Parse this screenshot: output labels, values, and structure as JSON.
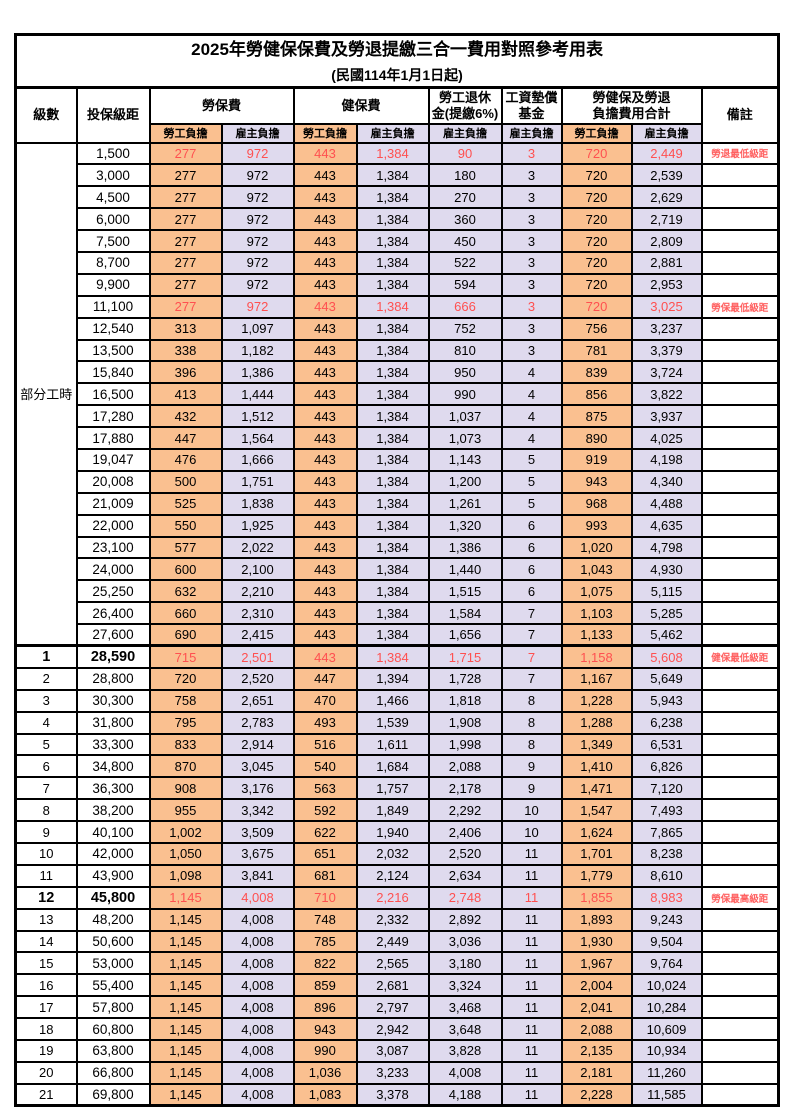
{
  "page": {
    "title": "2025年勞健保保費及勞退提繳三合一費用對照參考用表",
    "subtitle": "(民國114年1月1日起)"
  },
  "colors": {
    "employee_bg": "#FAC090",
    "employer_bg": "#DFDAEE",
    "highlight_text": "#FF5050",
    "remark_text": "#FF6060",
    "border": "#000000"
  },
  "table": {
    "headers": {
      "level": "級數",
      "bracket": "投保級距",
      "labor_fee": "勞保費",
      "health_fee": "健保費",
      "pension_line1": "勞工退休",
      "pension_line2": "金(提繳6%)",
      "wage_fund_line1": "工資墊償",
      "wage_fund_line2": "基金",
      "total_line1": "勞健保及勞退",
      "total_line2": "負擔費用合計",
      "remark": "備註",
      "employee": "勞工負擔",
      "employer": "雇主負擔"
    },
    "part_time_label": "部分工時",
    "rows": [
      {
        "level": "",
        "bracket": "1,500",
        "fees": [
          "277",
          "972",
          "443",
          "1,384",
          "90",
          "3",
          "720",
          "2,449"
        ],
        "remark": "勞退最低級距",
        "red": true
      },
      {
        "level": "",
        "bracket": "3,000",
        "fees": [
          "277",
          "972",
          "443",
          "1,384",
          "180",
          "3",
          "720",
          "2,539"
        ],
        "remark": ""
      },
      {
        "level": "",
        "bracket": "4,500",
        "fees": [
          "277",
          "972",
          "443",
          "1,384",
          "270",
          "3",
          "720",
          "2,629"
        ],
        "remark": ""
      },
      {
        "level": "",
        "bracket": "6,000",
        "fees": [
          "277",
          "972",
          "443",
          "1,384",
          "360",
          "3",
          "720",
          "2,719"
        ],
        "remark": ""
      },
      {
        "level": "",
        "bracket": "7,500",
        "fees": [
          "277",
          "972",
          "443",
          "1,384",
          "450",
          "3",
          "720",
          "2,809"
        ],
        "remark": ""
      },
      {
        "level": "",
        "bracket": "8,700",
        "fees": [
          "277",
          "972",
          "443",
          "1,384",
          "522",
          "3",
          "720",
          "2,881"
        ],
        "remark": ""
      },
      {
        "level": "",
        "bracket": "9,900",
        "fees": [
          "277",
          "972",
          "443",
          "1,384",
          "594",
          "3",
          "720",
          "2,953"
        ],
        "remark": ""
      },
      {
        "level": "",
        "bracket": "11,100",
        "fees": [
          "277",
          "972",
          "443",
          "1,384",
          "666",
          "3",
          "720",
          "3,025"
        ],
        "remark": "勞保最低級距",
        "red": true
      },
      {
        "level": "",
        "bracket": "12,540",
        "fees": [
          "313",
          "1,097",
          "443",
          "1,384",
          "752",
          "3",
          "756",
          "3,237"
        ],
        "remark": ""
      },
      {
        "level": "",
        "bracket": "13,500",
        "fees": [
          "338",
          "1,182",
          "443",
          "1,384",
          "810",
          "3",
          "781",
          "3,379"
        ],
        "remark": ""
      },
      {
        "level": "",
        "bracket": "15,840",
        "fees": [
          "396",
          "1,386",
          "443",
          "1,384",
          "950",
          "4",
          "839",
          "3,724"
        ],
        "remark": ""
      },
      {
        "level": "",
        "bracket": "16,500",
        "fees": [
          "413",
          "1,444",
          "443",
          "1,384",
          "990",
          "4",
          "856",
          "3,822"
        ],
        "remark": ""
      },
      {
        "level": "",
        "bracket": "17,280",
        "fees": [
          "432",
          "1,512",
          "443",
          "1,384",
          "1,037",
          "4",
          "875",
          "3,937"
        ],
        "remark": ""
      },
      {
        "level": "",
        "bracket": "17,880",
        "fees": [
          "447",
          "1,564",
          "443",
          "1,384",
          "1,073",
          "4",
          "890",
          "4,025"
        ],
        "remark": ""
      },
      {
        "level": "",
        "bracket": "19,047",
        "fees": [
          "476",
          "1,666",
          "443",
          "1,384",
          "1,143",
          "5",
          "919",
          "4,198"
        ],
        "remark": ""
      },
      {
        "level": "",
        "bracket": "20,008",
        "fees": [
          "500",
          "1,751",
          "443",
          "1,384",
          "1,200",
          "5",
          "943",
          "4,340"
        ],
        "remark": ""
      },
      {
        "level": "",
        "bracket": "21,009",
        "fees": [
          "525",
          "1,838",
          "443",
          "1,384",
          "1,261",
          "5",
          "968",
          "4,488"
        ],
        "remark": ""
      },
      {
        "level": "",
        "bracket": "22,000",
        "fees": [
          "550",
          "1,925",
          "443",
          "1,384",
          "1,320",
          "6",
          "993",
          "4,635"
        ],
        "remark": ""
      },
      {
        "level": "",
        "bracket": "23,100",
        "fees": [
          "577",
          "2,022",
          "443",
          "1,384",
          "1,386",
          "6",
          "1,020",
          "4,798"
        ],
        "remark": ""
      },
      {
        "level": "",
        "bracket": "24,000",
        "fees": [
          "600",
          "2,100",
          "443",
          "1,384",
          "1,440",
          "6",
          "1,043",
          "4,930"
        ],
        "remark": ""
      },
      {
        "level": "",
        "bracket": "25,250",
        "fees": [
          "632",
          "2,210",
          "443",
          "1,384",
          "1,515",
          "6",
          "1,075",
          "5,115"
        ],
        "remark": ""
      },
      {
        "level": "",
        "bracket": "26,400",
        "fees": [
          "660",
          "2,310",
          "443",
          "1,384",
          "1,584",
          "7",
          "1,103",
          "5,285"
        ],
        "remark": ""
      },
      {
        "level": "",
        "bracket": "27,600",
        "fees": [
          "690",
          "2,415",
          "443",
          "1,384",
          "1,656",
          "7",
          "1,133",
          "5,462"
        ],
        "remark": ""
      },
      {
        "level": "1",
        "bracket": "28,590",
        "fees": [
          "715",
          "2,501",
          "443",
          "1,384",
          "1,715",
          "7",
          "1,158",
          "5,608"
        ],
        "remark": "健保最低級距",
        "red": true,
        "bold": true,
        "section_break": true
      },
      {
        "level": "2",
        "bracket": "28,800",
        "fees": [
          "720",
          "2,520",
          "447",
          "1,394",
          "1,728",
          "7",
          "1,167",
          "5,649"
        ],
        "remark": ""
      },
      {
        "level": "3",
        "bracket": "30,300",
        "fees": [
          "758",
          "2,651",
          "470",
          "1,466",
          "1,818",
          "8",
          "1,228",
          "5,943"
        ],
        "remark": ""
      },
      {
        "level": "4",
        "bracket": "31,800",
        "fees": [
          "795",
          "2,783",
          "493",
          "1,539",
          "1,908",
          "8",
          "1,288",
          "6,238"
        ],
        "remark": ""
      },
      {
        "level": "5",
        "bracket": "33,300",
        "fees": [
          "833",
          "2,914",
          "516",
          "1,611",
          "1,998",
          "8",
          "1,349",
          "6,531"
        ],
        "remark": ""
      },
      {
        "level": "6",
        "bracket": "34,800",
        "fees": [
          "870",
          "3,045",
          "540",
          "1,684",
          "2,088",
          "9",
          "1,410",
          "6,826"
        ],
        "remark": ""
      },
      {
        "level": "7",
        "bracket": "36,300",
        "fees": [
          "908",
          "3,176",
          "563",
          "1,757",
          "2,178",
          "9",
          "1,471",
          "7,120"
        ],
        "remark": ""
      },
      {
        "level": "8",
        "bracket": "38,200",
        "fees": [
          "955",
          "3,342",
          "592",
          "1,849",
          "2,292",
          "10",
          "1,547",
          "7,493"
        ],
        "remark": ""
      },
      {
        "level": "9",
        "bracket": "40,100",
        "fees": [
          "1,002",
          "3,509",
          "622",
          "1,940",
          "2,406",
          "10",
          "1,624",
          "7,865"
        ],
        "remark": ""
      },
      {
        "level": "10",
        "bracket": "42,000",
        "fees": [
          "1,050",
          "3,675",
          "651",
          "2,032",
          "2,520",
          "11",
          "1,701",
          "8,238"
        ],
        "remark": ""
      },
      {
        "level": "11",
        "bracket": "43,900",
        "fees": [
          "1,098",
          "3,841",
          "681",
          "2,124",
          "2,634",
          "11",
          "1,779",
          "8,610"
        ],
        "remark": ""
      },
      {
        "level": "12",
        "bracket": "45,800",
        "fees": [
          "1,145",
          "4,008",
          "710",
          "2,216",
          "2,748",
          "11",
          "1,855",
          "8,983"
        ],
        "remark": "勞保最高級距",
        "red": true,
        "bold": true
      },
      {
        "level": "13",
        "bracket": "48,200",
        "fees": [
          "1,145",
          "4,008",
          "748",
          "2,332",
          "2,892",
          "11",
          "1,893",
          "9,243"
        ],
        "remark": ""
      },
      {
        "level": "14",
        "bracket": "50,600",
        "fees": [
          "1,145",
          "4,008",
          "785",
          "2,449",
          "3,036",
          "11",
          "1,930",
          "9,504"
        ],
        "remark": ""
      },
      {
        "level": "15",
        "bracket": "53,000",
        "fees": [
          "1,145",
          "4,008",
          "822",
          "2,565",
          "3,180",
          "11",
          "1,967",
          "9,764"
        ],
        "remark": ""
      },
      {
        "level": "16",
        "bracket": "55,400",
        "fees": [
          "1,145",
          "4,008",
          "859",
          "2,681",
          "3,324",
          "11",
          "2,004",
          "10,024"
        ],
        "remark": ""
      },
      {
        "level": "17",
        "bracket": "57,800",
        "fees": [
          "1,145",
          "4,008",
          "896",
          "2,797",
          "3,468",
          "11",
          "2,041",
          "10,284"
        ],
        "remark": ""
      },
      {
        "level": "18",
        "bracket": "60,800",
        "fees": [
          "1,145",
          "4,008",
          "943",
          "2,942",
          "3,648",
          "11",
          "2,088",
          "10,609"
        ],
        "remark": ""
      },
      {
        "level": "19",
        "bracket": "63,800",
        "fees": [
          "1,145",
          "4,008",
          "990",
          "3,087",
          "3,828",
          "11",
          "2,135",
          "10,934"
        ],
        "remark": ""
      },
      {
        "level": "20",
        "bracket": "66,800",
        "fees": [
          "1,145",
          "4,008",
          "1,036",
          "3,233",
          "4,008",
          "11",
          "2,181",
          "11,260"
        ],
        "remark": ""
      },
      {
        "level": "21",
        "bracket": "69,800",
        "fees": [
          "1,145",
          "4,008",
          "1,083",
          "3,378",
          "4,188",
          "11",
          "2,228",
          "11,585"
        ],
        "remark": ""
      }
    ]
  }
}
